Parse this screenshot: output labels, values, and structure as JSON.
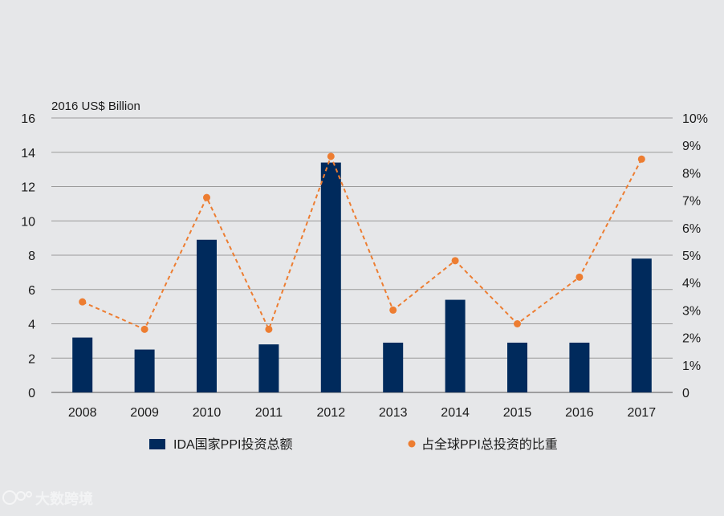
{
  "chart_data": {
    "type": "bar+line",
    "y_axis_unit": "2016 US$ Billion",
    "categories": [
      "2008",
      "2009",
      "2010",
      "2011",
      "2012",
      "2013",
      "2014",
      "2015",
      "2016",
      "2017"
    ],
    "series": [
      {
        "name": "IDA国家PPI投资总额",
        "type": "bar",
        "axis": "left",
        "color": "#002a5c",
        "values": [
          3.2,
          2.5,
          8.9,
          2.8,
          13.4,
          2.9,
          5.4,
          2.9,
          2.9,
          7.8
        ]
      },
      {
        "name": "占全球PPI总投资的比重",
        "type": "line",
        "axis": "right",
        "style": "dashed",
        "color": "#ed7d31",
        "values": [
          3.3,
          2.3,
          7.1,
          2.3,
          8.6,
          3.0,
          4.8,
          2.5,
          4.2,
          8.5
        ]
      }
    ],
    "y_left": {
      "min": 0,
      "max": 16,
      "ticks": [
        "0",
        "2",
        "4",
        "6",
        "8",
        "10",
        "12",
        "14",
        "16"
      ]
    },
    "y_right": {
      "min": 0,
      "max": 10,
      "ticks": [
        "0",
        "1%",
        "2%",
        "3%",
        "4%",
        "5%",
        "6%",
        "7%",
        "8%",
        "9%",
        "10%"
      ]
    },
    "grid": true,
    "legend_position": "bottom"
  },
  "watermark": {
    "text": "大数跨境"
  }
}
